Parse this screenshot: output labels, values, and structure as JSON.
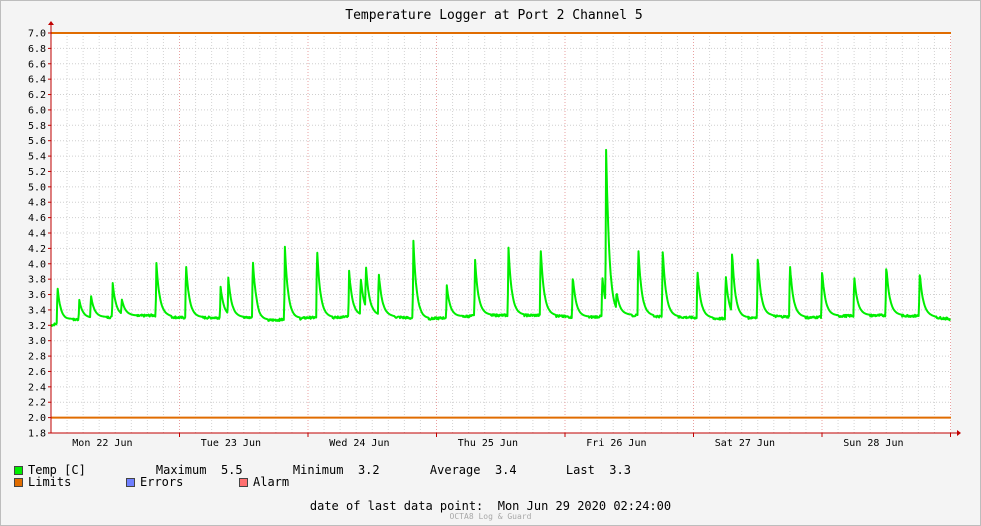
{
  "chart_data": {
    "type": "line",
    "title": "Temperature Logger at Port 2 Channel 5",
    "ylim": [
      1.8,
      7.0
    ],
    "xlim_days": [
      0,
      7
    ],
    "y_ticks": [
      "7.0",
      "6.8",
      "6.6",
      "6.4",
      "6.2",
      "6.0",
      "5.8",
      "5.6",
      "5.4",
      "5.2",
      "5.0",
      "4.8",
      "4.6",
      "4.4",
      "4.2",
      "4.0",
      "3.8",
      "3.6",
      "3.4",
      "3.2",
      "3.0",
      "2.8",
      "2.6",
      "2.4",
      "2.2",
      "2.0",
      "1.8"
    ],
    "x_day_labels": [
      "Mon 22 Jun",
      "Tue 23 Jun",
      "Wed 24 Jun",
      "Thu 25 Jun",
      "Fri 26 Jun",
      "Sat 27 Jun",
      "Sun 28 Jun"
    ],
    "grid": true,
    "limits": {
      "upper": 7.0,
      "lower": 2.0,
      "color": "#e06c00"
    },
    "series": [
      {
        "name": "Temp [C]",
        "color": "#00ee00",
        "baseline": [
          [
            0,
            3.2
          ],
          [
            0.15,
            3.27
          ],
          [
            0.5,
            3.31
          ],
          [
            0.8,
            3.33
          ],
          [
            1.0,
            3.3
          ],
          [
            1.6,
            3.3
          ],
          [
            1.62,
            3.26
          ],
          [
            1.9,
            3.28
          ],
          [
            2.0,
            3.3
          ],
          [
            2.2,
            3.3
          ],
          [
            2.5,
            3.33
          ],
          [
            2.75,
            3.3
          ],
          [
            2.9,
            3.28
          ],
          [
            3.1,
            3.3
          ],
          [
            3.35,
            3.33
          ],
          [
            3.8,
            3.33
          ],
          [
            3.95,
            3.32
          ],
          [
            4.1,
            3.3
          ],
          [
            4.5,
            3.33
          ],
          [
            5.0,
            3.3
          ],
          [
            5.3,
            3.28
          ],
          [
            5.6,
            3.32
          ],
          [
            5.9,
            3.3
          ],
          [
            6.1,
            3.32
          ],
          [
            6.5,
            3.33
          ],
          [
            6.8,
            3.32
          ],
          [
            7.0,
            3.28
          ]
        ],
        "spikes": [
          [
            0.05,
            3.66
          ],
          [
            0.22,
            3.48
          ],
          [
            0.31,
            3.55
          ],
          [
            0.48,
            3.7
          ],
          [
            0.55,
            3.5
          ],
          [
            0.82,
            3.96
          ],
          [
            1.05,
            3.96
          ],
          [
            1.32,
            3.65
          ],
          [
            1.38,
            3.77
          ],
          [
            1.57,
            4.02
          ],
          [
            1.82,
            4.17
          ],
          [
            2.07,
            4.16
          ],
          [
            2.32,
            3.86
          ],
          [
            2.41,
            3.78
          ],
          [
            2.45,
            3.95
          ],
          [
            2.55,
            3.85
          ],
          [
            2.82,
            4.25
          ],
          [
            3.08,
            3.67
          ],
          [
            3.3,
            4.0
          ],
          [
            3.56,
            4.16
          ],
          [
            3.81,
            4.18
          ],
          [
            4.06,
            3.8
          ],
          [
            4.29,
            3.8
          ],
          [
            4.32,
            5.48
          ],
          [
            4.4,
            3.6
          ],
          [
            4.57,
            4.18
          ],
          [
            4.76,
            4.15
          ],
          [
            5.03,
            3.88
          ],
          [
            5.25,
            3.82
          ],
          [
            5.3,
            4.12
          ],
          [
            5.5,
            4.05
          ],
          [
            5.75,
            3.96
          ],
          [
            6.0,
            3.88
          ],
          [
            6.25,
            3.8
          ],
          [
            6.5,
            3.93
          ],
          [
            6.76,
            3.85
          ]
        ]
      }
    ]
  },
  "legend": {
    "temp_label": "Temp [C]",
    "temp_color": "#00ee00",
    "limits_label": "Limits",
    "limits_color": "#e06c00",
    "errors_label": "Errors",
    "errors_color": "#6f7fff",
    "alarm_label": "Alarm",
    "alarm_color": "#ff7070"
  },
  "stats": {
    "maximum_label": "Maximum",
    "maximum": "5.5",
    "minimum_label": "Minimum",
    "minimum": "3.2",
    "average_label": "Average",
    "average": "3.4",
    "last_label": "Last",
    "last": "3.3"
  },
  "footer": {
    "label": "date of last data point:",
    "value": "Mon Jun 29 2020 02:24:00"
  },
  "credit": "OCTA8 Log & Guard"
}
